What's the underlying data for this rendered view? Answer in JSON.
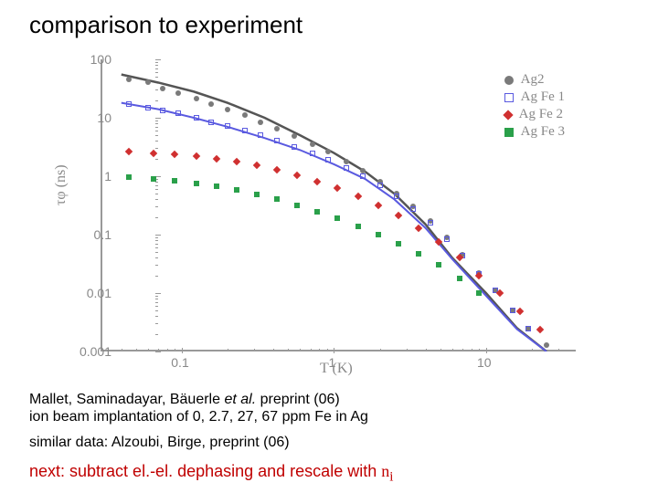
{
  "title": "comparison to experiment",
  "chart": {
    "type": "scatter-loglog",
    "xlabel": "T (K)",
    "ylabel": "τφ (ns)",
    "xlim": [
      0.03,
      40
    ],
    "ylim": [
      0.001,
      100
    ],
    "xticks": [
      0.1,
      1,
      10
    ],
    "xtick_labels": [
      "0.1",
      "1",
      "10"
    ],
    "yticks": [
      0.001,
      0.01,
      0.1,
      1,
      10,
      100
    ],
    "ytick_labels": [
      "0.001",
      "0.01",
      "0.1",
      "1",
      "10",
      "100"
    ],
    "background_color": "#ffffff",
    "axis_color": "#999999",
    "marker_size": 6,
    "legend": [
      {
        "label": "Ag2",
        "color": "#7a7a7a",
        "shape": "circle",
        "fill": true
      },
      {
        "label": "Ag Fe 1",
        "color": "#5a5ae0",
        "shape": "square",
        "fill": false
      },
      {
        "label": "Ag Fe 2",
        "color": "#d03030",
        "shape": "diamond",
        "fill": true
      },
      {
        "label": "Ag Fe 3",
        "color": "#2aa04a",
        "shape": "square",
        "fill": true
      }
    ],
    "fit_lines": [
      {
        "color": "#555555",
        "width": 2.5,
        "pts": [
          [
            0.04,
            55
          ],
          [
            0.07,
            40
          ],
          [
            0.12,
            28
          ],
          [
            0.2,
            18
          ],
          [
            0.35,
            10
          ],
          [
            0.6,
            5
          ],
          [
            1.0,
            2.5
          ],
          [
            1.6,
            1.2
          ],
          [
            2.5,
            0.5
          ],
          [
            4,
            0.15
          ],
          [
            6,
            0.04
          ],
          [
            10,
            0.01
          ],
          [
            16,
            0.0025
          ],
          [
            25,
            0.001
          ]
        ]
      },
      {
        "color": "#5a5ae0",
        "width": 2.0,
        "pts": [
          [
            0.04,
            18
          ],
          [
            0.07,
            14
          ],
          [
            0.12,
            10
          ],
          [
            0.2,
            7
          ],
          [
            0.35,
            4.5
          ],
          [
            0.6,
            2.8
          ],
          [
            1.0,
            1.6
          ],
          [
            1.6,
            0.9
          ],
          [
            2.5,
            0.4
          ],
          [
            4,
            0.13
          ],
          [
            6,
            0.038
          ],
          [
            10,
            0.009
          ],
          [
            16,
            0.0024
          ],
          [
            25,
            0.001
          ]
        ]
      }
    ],
    "series": [
      {
        "name": "Ag2",
        "color": "#7a7a7a",
        "shape": "circle",
        "fill": true,
        "data": [
          [
            0.045,
            45
          ],
          [
            0.06,
            40
          ],
          [
            0.075,
            32
          ],
          [
            0.095,
            26
          ],
          [
            0.125,
            21
          ],
          [
            0.155,
            17
          ],
          [
            0.2,
            14
          ],
          [
            0.26,
            11
          ],
          [
            0.33,
            8.5
          ],
          [
            0.42,
            6.5
          ],
          [
            0.55,
            4.8
          ],
          [
            0.72,
            3.5
          ],
          [
            0.92,
            2.6
          ],
          [
            1.2,
            1.8
          ],
          [
            1.55,
            1.25
          ],
          [
            2.0,
            0.8
          ],
          [
            2.6,
            0.5
          ],
          [
            3.3,
            0.3
          ],
          [
            4.3,
            0.17
          ],
          [
            5.5,
            0.09
          ],
          [
            7.0,
            0.045
          ],
          [
            9.0,
            0.022
          ],
          [
            11.5,
            0.011
          ],
          [
            15,
            0.005
          ],
          [
            19,
            0.0025
          ],
          [
            25,
            0.0013
          ]
        ]
      },
      {
        "name": "AgFe1",
        "color": "#5a5ae0",
        "shape": "square",
        "fill": false,
        "data": [
          [
            0.045,
            17
          ],
          [
            0.06,
            15
          ],
          [
            0.075,
            13.5
          ],
          [
            0.095,
            12
          ],
          [
            0.125,
            10
          ],
          [
            0.155,
            8.5
          ],
          [
            0.2,
            7.2
          ],
          [
            0.26,
            6
          ],
          [
            0.33,
            5
          ],
          [
            0.42,
            4
          ],
          [
            0.55,
            3.2
          ],
          [
            0.72,
            2.5
          ],
          [
            0.92,
            1.9
          ],
          [
            1.2,
            1.4
          ],
          [
            1.55,
            1.0
          ],
          [
            2.0,
            0.7
          ],
          [
            2.6,
            0.45
          ],
          [
            3.3,
            0.27
          ],
          [
            4.3,
            0.16
          ],
          [
            5.5,
            0.085
          ],
          [
            7.0,
            0.043
          ],
          [
            9.0,
            0.021
          ],
          [
            11.5,
            0.011
          ],
          [
            15,
            0.005
          ],
          [
            19,
            0.0025
          ]
        ]
      },
      {
        "name": "AgFe2",
        "color": "#d03030",
        "shape": "diamond",
        "fill": true,
        "data": [
          [
            0.045,
            2.6
          ],
          [
            0.065,
            2.5
          ],
          [
            0.09,
            2.4
          ],
          [
            0.125,
            2.2
          ],
          [
            0.17,
            2.0
          ],
          [
            0.23,
            1.8
          ],
          [
            0.31,
            1.55
          ],
          [
            0.42,
            1.3
          ],
          [
            0.57,
            1.05
          ],
          [
            0.78,
            0.82
          ],
          [
            1.05,
            0.62
          ],
          [
            1.45,
            0.45
          ],
          [
            1.95,
            0.32
          ],
          [
            2.65,
            0.21
          ],
          [
            3.6,
            0.13
          ],
          [
            4.9,
            0.075
          ],
          [
            6.7,
            0.04
          ],
          [
            9.0,
            0.02
          ],
          [
            12.3,
            0.01
          ],
          [
            16.7,
            0.0048
          ],
          [
            22.7,
            0.0024
          ]
        ]
      },
      {
        "name": "AgFe3",
        "color": "#2aa04a",
        "shape": "square",
        "fill": true,
        "data": [
          [
            0.045,
            0.95
          ],
          [
            0.065,
            0.9
          ],
          [
            0.09,
            0.83
          ],
          [
            0.125,
            0.75
          ],
          [
            0.17,
            0.67
          ],
          [
            0.23,
            0.58
          ],
          [
            0.31,
            0.49
          ],
          [
            0.42,
            0.4
          ],
          [
            0.57,
            0.32
          ],
          [
            0.78,
            0.25
          ],
          [
            1.05,
            0.19
          ],
          [
            1.45,
            0.14
          ],
          [
            1.95,
            0.1
          ],
          [
            2.65,
            0.07
          ],
          [
            3.6,
            0.047
          ],
          [
            4.9,
            0.03
          ],
          [
            6.7,
            0.018
          ],
          [
            9.0,
            0.01
          ]
        ]
      }
    ]
  },
  "caption1a": "Mallet, Saminadayar, Bäuerle ",
  "caption1b": "et al.",
  "caption1c": " preprint (06)",
  "caption2": "ion beam implantation of 0, 2.7, 27, 67 ppm Fe in Ag",
  "caption3": "similar data: Alzoubi, Birge, preprint (06)",
  "caption4a": "next: subtract el.-el. dephasing and rescale with ",
  "caption4b": "n",
  "caption4c": "i"
}
